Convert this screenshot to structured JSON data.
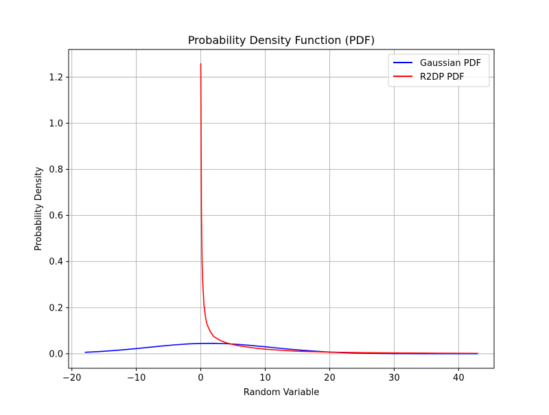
{
  "chart_data": {
    "type": "line",
    "title": "Probability Density Function (PDF)",
    "xlabel": "Random Variable",
    "ylabel": "Probability Density",
    "xlim": [
      -20.5,
      45.5
    ],
    "ylim": [
      -0.063,
      1.32
    ],
    "xticks": [
      -20,
      -10,
      0,
      10,
      20,
      30,
      40
    ],
    "xtick_labels": [
      "−20",
      "−10",
      "0",
      "10",
      "20",
      "30",
      "40"
    ],
    "yticks": [
      0.0,
      0.2,
      0.4,
      0.6,
      0.8,
      1.0,
      1.2
    ],
    "ytick_labels": [
      "0.0",
      "0.2",
      "0.4",
      "0.6",
      "0.8",
      "1.0",
      "1.2"
    ],
    "grid": true,
    "legend_position": "top-right",
    "series": [
      {
        "name": "Gaussian PDF",
        "color": "#0000ff",
        "x": [
          -18,
          -16,
          -14,
          -12,
          -10,
          -8,
          -6,
          -4,
          -2,
          0,
          2,
          4,
          6,
          8,
          10,
          12,
          14,
          16,
          18,
          20,
          22,
          24,
          26,
          28,
          30,
          32,
          34,
          36,
          38,
          40,
          42,
          43
        ],
        "y": [
          0.0063,
          0.0092,
          0.0129,
          0.0174,
          0.0226,
          0.0282,
          0.0337,
          0.0387,
          0.0426,
          0.0449,
          0.0452,
          0.0436,
          0.0402,
          0.0356,
          0.0302,
          0.0246,
          0.0193,
          0.0146,
          0.0106,
          0.0073,
          0.0049,
          0.0031,
          0.0019,
          0.0011,
          0.0006,
          0.0003,
          0.0002,
          0.0001,
          0.0,
          0.0,
          0.0,
          0.0
        ]
      },
      {
        "name": "R2DP PDF",
        "color": "#ff0000",
        "x": [
          0.001,
          0.05,
          0.1,
          0.2,
          0.3,
          0.5,
          0.75,
          1,
          1.5,
          2,
          3,
          4,
          5,
          6,
          8,
          10,
          12,
          15,
          20,
          25,
          30,
          35,
          40,
          43
        ],
        "y": [
          1.26,
          0.94,
          0.62,
          0.4,
          0.31,
          0.21,
          0.155,
          0.125,
          0.095,
          0.075,
          0.058,
          0.047,
          0.04,
          0.034,
          0.026,
          0.02,
          0.016,
          0.011,
          0.007,
          0.0048,
          0.0035,
          0.0027,
          0.0021,
          0.0018
        ]
      }
    ]
  }
}
